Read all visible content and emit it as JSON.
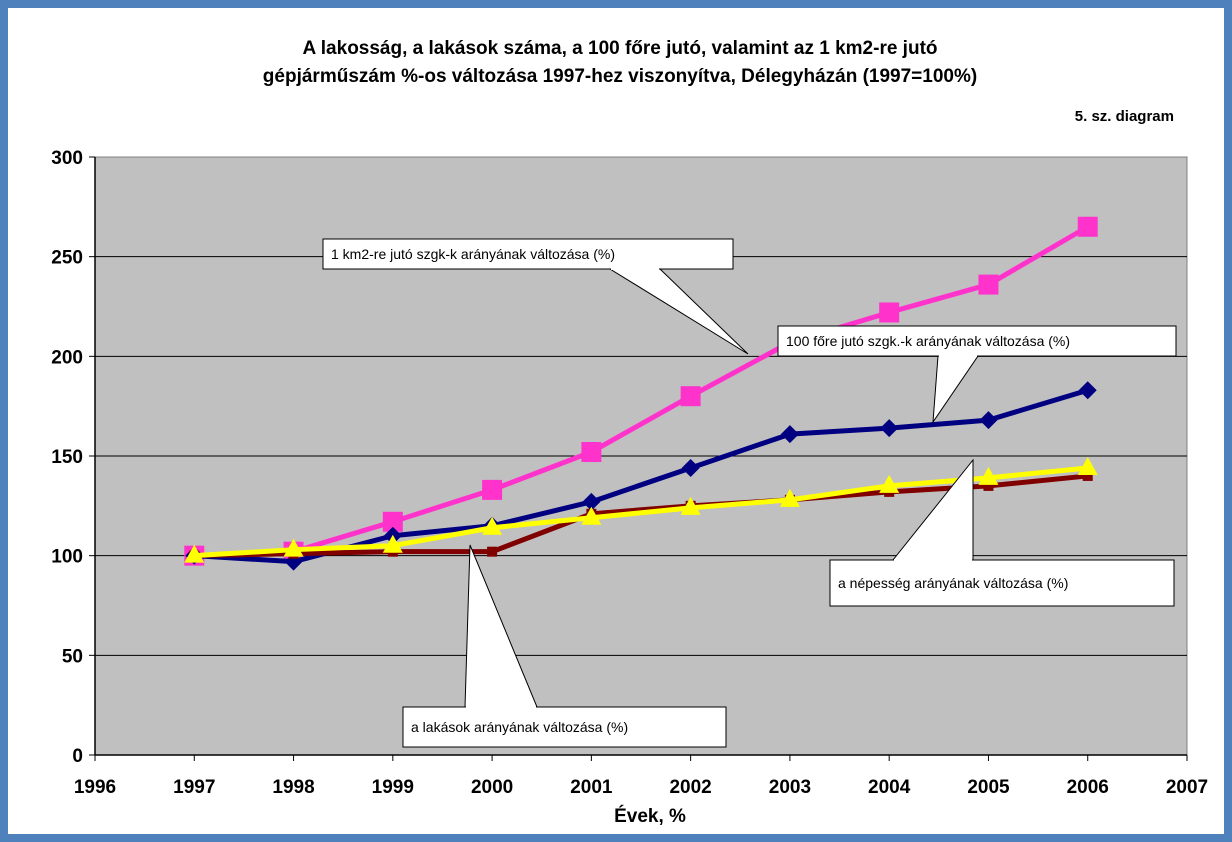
{
  "chart_data": {
    "type": "line",
    "title_line1": "A lakosság, a lakások száma, a 100 főre jutó, valamint az 1 km2-re jutó",
    "title_line2": "gépjárműszám %-os változása 1997-hez viszonyítva, Délegyházán (1997=100%)",
    "subtitle": "5. sz. diagram",
    "xlabel": "Évek, %",
    "ylabel": "",
    "xlim": [
      1996,
      2007
    ],
    "ylim": [
      0,
      300
    ],
    "x_ticks": [
      1996,
      1997,
      1998,
      1999,
      2000,
      2001,
      2002,
      2003,
      2004,
      2005,
      2006,
      2007
    ],
    "y_ticks": [
      0,
      50,
      100,
      150,
      200,
      250,
      300
    ],
    "grid": true,
    "background": "#c0c0c0",
    "legend": "none",
    "x": [
      1997,
      1998,
      1999,
      2000,
      2001,
      2002,
      2003,
      2004,
      2005,
      2006
    ],
    "series": [
      {
        "color": "#ff33cc",
        "marker": "square",
        "values": [
          100,
          102,
          117,
          133,
          152,
          180,
          207,
          222,
          236,
          265
        ]
      },
      {
        "color": "#000080",
        "marker": "diamond",
        "values": [
          100,
          97,
          110,
          115,
          127,
          144,
          161,
          164,
          168,
          183
        ]
      },
      {
        "color": "#ffff00",
        "marker": "triangle",
        "values": [
          100,
          103,
          105,
          114,
          119,
          124,
          128,
          135,
          139,
          144
        ]
      },
      {
        "color": "#800000",
        "marker": "square-small",
        "values": [
          100,
          101,
          102,
          102,
          121,
          125,
          128,
          132,
          135,
          140
        ]
      }
    ],
    "annotations": [
      {
        "text": "1 km2-re jutó szgk-k arányának változása (%)"
      },
      {
        "text": "100 főre jutó szgk.-k arányának változása (%)"
      },
      {
        "text": "a népesség arányának változása (%)"
      },
      {
        "text": "a lakások arányának változása (%)"
      }
    ]
  }
}
